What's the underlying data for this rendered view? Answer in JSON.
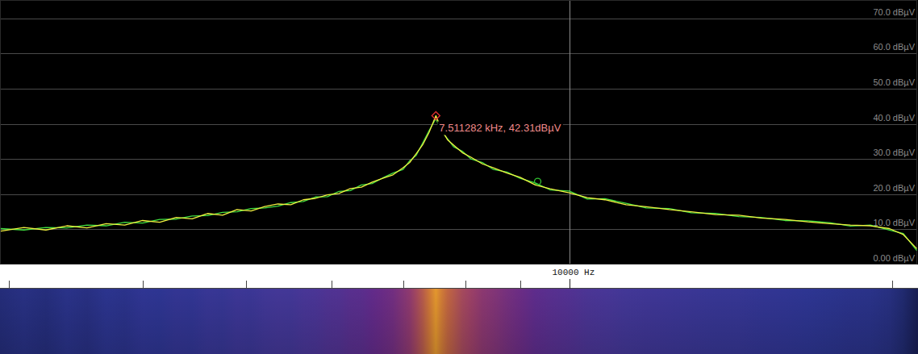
{
  "chart_data": {
    "type": "line",
    "log": "x",
    "grid": true,
    "xlim": [
      2945,
      21120
    ],
    "ylim": [
      0,
      75.2
    ],
    "xticks": [
      {
        "value": 10000,
        "label": "10000 Hz"
      }
    ],
    "xminor_ticks": [
      3000,
      4000,
      5000,
      6000,
      7000,
      8000,
      9000,
      20000
    ],
    "yticks": [
      {
        "value": 0,
        "label": "0.00 dBµV"
      },
      {
        "value": 10,
        "label": "10.0 dBµV"
      },
      {
        "value": 20,
        "label": "20.0 dBµV"
      },
      {
        "value": 30,
        "label": "30.0 dBµV"
      },
      {
        "value": 40,
        "label": "40.0 dBµV"
      },
      {
        "value": 50,
        "label": "50.0 dBµV"
      },
      {
        "value": 60,
        "label": "60.0 dBµV"
      },
      {
        "value": 70,
        "label": "70.0 dBµV"
      }
    ],
    "x": [
      2950,
      3100,
      3250,
      3400,
      3550,
      3700,
      3850,
      4000,
      4150,
      4300,
      4450,
      4600,
      4750,
      4900,
      5050,
      5200,
      5350,
      5500,
      5650,
      5800,
      5950,
      6100,
      6250,
      6400,
      6550,
      6700,
      6850,
      7000,
      7100,
      7200,
      7300,
      7400,
      7511.282,
      7600,
      7700,
      7800,
      7950,
      8100,
      8300,
      8500,
      8750,
      9000,
      9300,
      9600,
      10000,
      10400,
      10800,
      11300,
      11800,
      12400,
      13000,
      13700,
      14400,
      15100,
      15900,
      16700,
      17500,
      18300,
      19100,
      19900,
      20500,
      21100
    ],
    "series": [
      {
        "color": "#40e040",
        "values": [
          10.2,
          9.8,
          10.5,
          10.4,
          11.2,
          11,
          12,
          11.8,
          12.8,
          12.9,
          13.8,
          13.9,
          14.8,
          15,
          15.9,
          16.1,
          16.6,
          17.6,
          17.9,
          19.2,
          19.3,
          20.8,
          21,
          22.6,
          23,
          24.6,
          26,
          27,
          29.5,
          31,
          34.5,
          38,
          41.5,
          37.8,
          35.8,
          33.5,
          32.2,
          30,
          29,
          27,
          26.3,
          24.5,
          23.2,
          21.2,
          20.9,
          18.6,
          18.7,
          17.4,
          16.1,
          15.9,
          14.7,
          14.5,
          13.6,
          13.4,
          12.5,
          12.4,
          11.9,
          10.9,
          11.2,
          9.8,
          8.8,
          4
        ]
      },
      {
        "color": "#f0f040",
        "values": [
          9.5,
          10.5,
          9.8,
          11,
          10.4,
          11.6,
          11.2,
          12.5,
          12,
          13.4,
          13,
          14.5,
          14,
          15.6,
          15.2,
          16.5,
          17.2,
          17,
          18.4,
          18.8,
          19.8,
          20.2,
          21.6,
          22,
          23.4,
          24.5,
          25.5,
          27.5,
          29,
          31.5,
          34,
          37.5,
          42.31,
          38.5,
          35.5,
          34,
          31.8,
          30.5,
          28.6,
          27.5,
          26,
          24.8,
          22.6,
          21.5,
          20.4,
          19,
          18.4,
          17,
          16.4,
          15.6,
          15,
          14.2,
          14,
          13.2,
          12.8,
          12.1,
          11.6,
          11.2,
          11,
          10.2,
          8.5,
          4.5
        ]
      }
    ],
    "markers": [
      {
        "x": 7511.282,
        "y": 42.31,
        "label": "7.511282 kHz, 42.31dBµV",
        "color": "#e03030"
      },
      {
        "x": 9347,
        "y": 23.6,
        "color": "#30c030"
      }
    ]
  }
}
